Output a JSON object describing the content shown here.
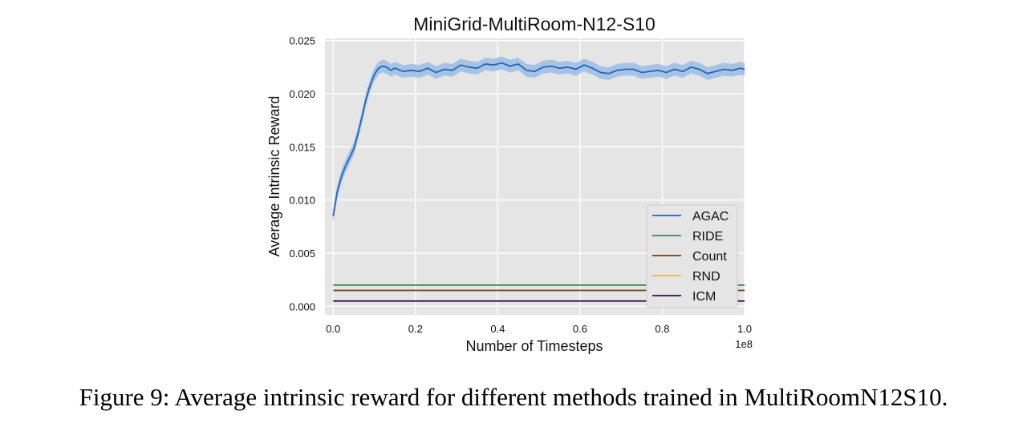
{
  "caption": "Figure 9: Average intrinsic reward for different methods trained in MultiRoomN12S10.",
  "chart_data": {
    "type": "line",
    "title": "MiniGrid-MultiRoom-N12-S10",
    "xlabel": "Number of Timesteps",
    "ylabel": "Average Intrinsic Reward",
    "x_offset_label": "1e8",
    "xlim": [
      -0.02,
      1.0
    ],
    "ylim": [
      -0.0008,
      0.0252
    ],
    "xticks": [
      0.0,
      0.2,
      0.4,
      0.6,
      0.8,
      1.0
    ],
    "xtick_labels": [
      "0.0",
      "0.2",
      "0.4",
      "0.6",
      "0.8",
      "1.0"
    ],
    "yticks": [
      0.0,
      0.005,
      0.01,
      0.015,
      0.02,
      0.025
    ],
    "ytick_labels": [
      "0.000",
      "0.005",
      "0.010",
      "0.015",
      "0.020",
      "0.025"
    ],
    "grid": true,
    "legend_position": "lower-right",
    "series": [
      {
        "name": "AGAC",
        "color": "#1f66c4",
        "band_color": "#9cbde3",
        "x": [
          0.0,
          0.01,
          0.02,
          0.03,
          0.04,
          0.05,
          0.06,
          0.07,
          0.08,
          0.09,
          0.1,
          0.11,
          0.12,
          0.13,
          0.14,
          0.15,
          0.17,
          0.19,
          0.21,
          0.23,
          0.25,
          0.27,
          0.29,
          0.31,
          0.33,
          0.35,
          0.37,
          0.39,
          0.41,
          0.43,
          0.45,
          0.47,
          0.49,
          0.51,
          0.53,
          0.55,
          0.57,
          0.59,
          0.61,
          0.63,
          0.65,
          0.67,
          0.69,
          0.71,
          0.73,
          0.75,
          0.77,
          0.79,
          0.81,
          0.83,
          0.85,
          0.87,
          0.89,
          0.91,
          0.93,
          0.95,
          0.97,
          0.99,
          1.0
        ],
        "y": [
          0.0085,
          0.0108,
          0.0122,
          0.0132,
          0.014,
          0.0148,
          0.0162,
          0.0178,
          0.0195,
          0.0208,
          0.0218,
          0.0224,
          0.0226,
          0.0225,
          0.0222,
          0.0224,
          0.0221,
          0.0222,
          0.0221,
          0.0224,
          0.022,
          0.0223,
          0.0222,
          0.0227,
          0.0225,
          0.0224,
          0.0228,
          0.0227,
          0.0229,
          0.0226,
          0.0228,
          0.0222,
          0.0221,
          0.0225,
          0.0226,
          0.0224,
          0.0225,
          0.0223,
          0.0227,
          0.0224,
          0.022,
          0.0219,
          0.0222,
          0.0223,
          0.0223,
          0.022,
          0.0221,
          0.0222,
          0.022,
          0.0223,
          0.0221,
          0.0225,
          0.0223,
          0.0219,
          0.0221,
          0.0223,
          0.0222,
          0.0224,
          0.0223
        ],
        "band": 0.0006
      },
      {
        "name": "RIDE",
        "color": "#2e8a57",
        "x": [
          0.0,
          1.0
        ],
        "y": [
          0.002,
          0.002
        ]
      },
      {
        "name": "Count",
        "color": "#7a3d12",
        "x": [
          0.0,
          1.0
        ],
        "y": [
          0.0015,
          0.0015
        ]
      },
      {
        "name": "RND",
        "color": "#f2b730",
        "x": [
          0.0,
          1.0
        ],
        "y": [
          0.0005,
          0.0005
        ]
      },
      {
        "name": "ICM",
        "color": "#2a0f4d",
        "x": [
          0.0,
          1.0
        ],
        "y": [
          0.0005,
          0.0005
        ]
      }
    ]
  }
}
